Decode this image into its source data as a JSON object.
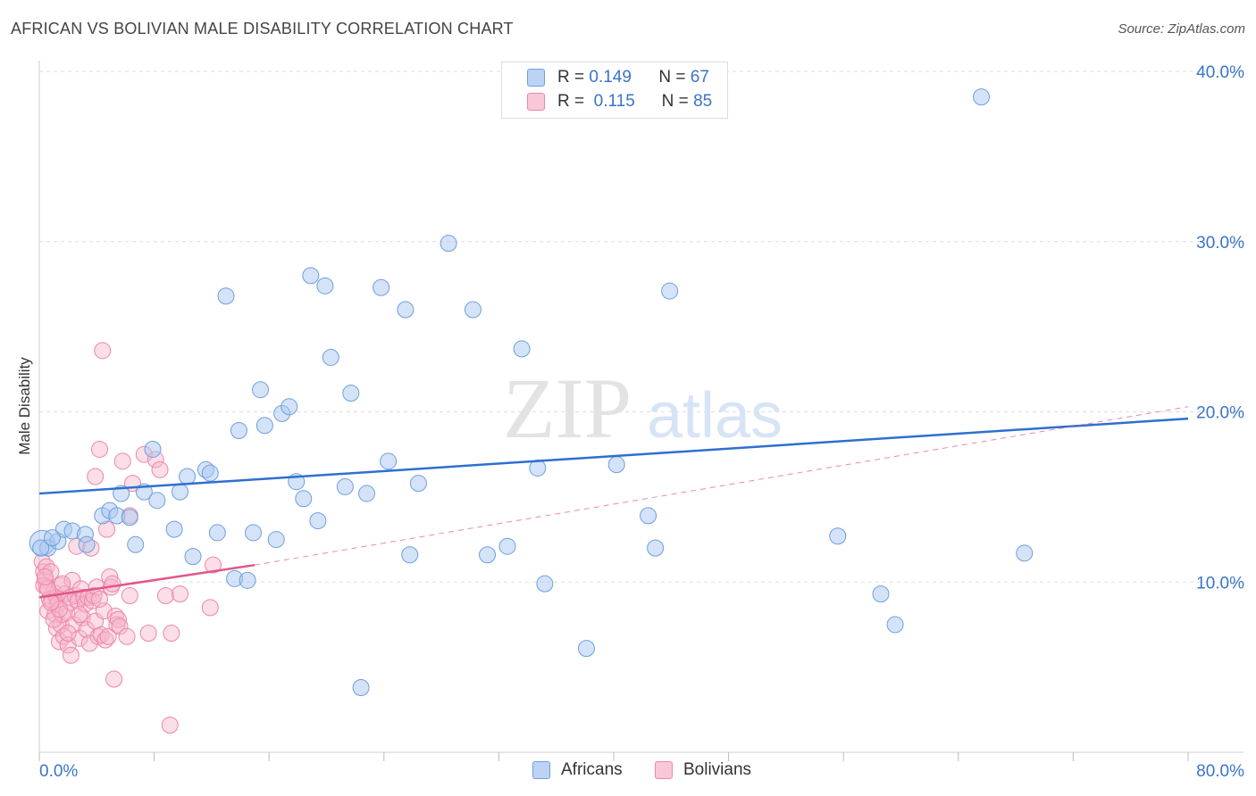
{
  "title": "AFRICAN VS BOLIVIAN MALE DISABILITY CORRELATION CHART",
  "source": "Source: ZipAtlas.com",
  "watermark": {
    "zip": "ZIP",
    "atlas": "atlas"
  },
  "legend": {
    "africans": {
      "r_label": "R =",
      "r_value": "0.149",
      "n_label": "N =",
      "n_value": "67"
    },
    "bolivians": {
      "r_label": "R =",
      "r_value": "0.115",
      "n_label": "N =",
      "n_value": "85"
    }
  },
  "bottom_legend": {
    "africans": "Africans",
    "bolivians": "Bolivians"
  },
  "colors": {
    "african_fill": "#a9c8f0",
    "african_stroke": "#6d9fe0",
    "african_line": "#2f6fcf",
    "bolivian_fill": "#f6b6cc",
    "bolivian_stroke": "#ec86a8",
    "bolivian_line": "#e0578a",
    "axis_text": "#3a74c9",
    "grid": "#dddddd"
  },
  "chart_data": {
    "type": "scatter",
    "title": "AFRICAN VS BOLIVIAN MALE DISABILITY CORRELATION CHART",
    "xlabel": "",
    "ylabel": "Male Disability",
    "xlim": [
      0,
      80
    ],
    "ylim": [
      0,
      40
    ],
    "x_tick_labels": [
      "0.0%",
      "80.0%"
    ],
    "y_ticks": [
      10,
      20,
      30,
      40
    ],
    "y_tick_labels": [
      "10.0%",
      "20.0%",
      "30.0%",
      "40.0%"
    ],
    "grid": true,
    "legend_position": "top-center",
    "series": [
      {
        "name": "Africans",
        "r": 0.149,
        "n": 67,
        "trend": {
          "x": [
            0,
            80
          ],
          "y": [
            15.2,
            19.6
          ],
          "style": "solid"
        },
        "points": [
          [
            0.2,
            12.3
          ],
          [
            0.6,
            12.0
          ],
          [
            1.3,
            12.4
          ],
          [
            1.7,
            13.1
          ],
          [
            2.3,
            13.0
          ],
          [
            3.2,
            12.8
          ],
          [
            3.3,
            12.2
          ],
          [
            4.4,
            13.9
          ],
          [
            4.9,
            14.2
          ],
          [
            5.4,
            13.9
          ],
          [
            5.7,
            15.2
          ],
          [
            6.3,
            13.8
          ],
          [
            6.7,
            12.2
          ],
          [
            7.3,
            15.3
          ],
          [
            7.9,
            17.8
          ],
          [
            8.2,
            14.8
          ],
          [
            9.4,
            13.1
          ],
          [
            9.8,
            15.3
          ],
          [
            10.3,
            16.2
          ],
          [
            10.7,
            11.5
          ],
          [
            11.6,
            16.6
          ],
          [
            11.9,
            16.4
          ],
          [
            12.4,
            12.9
          ],
          [
            13.0,
            26.8
          ],
          [
            13.6,
            10.2
          ],
          [
            13.9,
            18.9
          ],
          [
            14.5,
            10.1
          ],
          [
            14.9,
            12.9
          ],
          [
            15.4,
            21.3
          ],
          [
            15.7,
            19.2
          ],
          [
            16.5,
            12.5
          ],
          [
            16.9,
            19.9
          ],
          [
            17.4,
            20.3
          ],
          [
            17.9,
            15.9
          ],
          [
            18.4,
            14.9
          ],
          [
            18.9,
            28.0
          ],
          [
            19.4,
            13.6
          ],
          [
            19.9,
            27.4
          ],
          [
            20.3,
            23.2
          ],
          [
            21.3,
            15.6
          ],
          [
            21.7,
            21.1
          ],
          [
            22.4,
            3.8
          ],
          [
            22.8,
            15.2
          ],
          [
            23.8,
            27.3
          ],
          [
            24.3,
            17.1
          ],
          [
            25.5,
            26.0
          ],
          [
            25.8,
            11.6
          ],
          [
            26.4,
            15.8
          ],
          [
            28.5,
            29.9
          ],
          [
            30.2,
            26.0
          ],
          [
            31.2,
            11.6
          ],
          [
            32.6,
            12.1
          ],
          [
            33.6,
            23.7
          ],
          [
            34.7,
            16.7
          ],
          [
            35.2,
            9.9
          ],
          [
            38.1,
            6.1
          ],
          [
            40.2,
            16.9
          ],
          [
            42.4,
            13.9
          ],
          [
            42.9,
            12.0
          ],
          [
            43.9,
            27.1
          ],
          [
            55.6,
            12.7
          ],
          [
            58.6,
            9.3
          ],
          [
            59.6,
            7.5
          ],
          [
            65.6,
            38.5
          ],
          [
            68.6,
            11.7
          ],
          [
            0.1,
            12.0
          ],
          [
            0.9,
            12.6
          ]
        ]
      },
      {
        "name": "Bolivians",
        "r": 0.115,
        "n": 85,
        "trend": {
          "x": [
            0,
            15
          ],
          "y": [
            9.1,
            11.0
          ],
          "style": "solid"
        },
        "trend_extended": {
          "x": [
            15,
            80
          ],
          "y": [
            11.0,
            20.3
          ],
          "style": "dashed"
        },
        "points": [
          [
            0.2,
            11.2
          ],
          [
            0.3,
            10.6
          ],
          [
            0.4,
            10.1
          ],
          [
            0.5,
            9.7
          ],
          [
            0.5,
            10.9
          ],
          [
            0.6,
            8.3
          ],
          [
            0.7,
            9.0
          ],
          [
            0.8,
            10.6
          ],
          [
            0.9,
            8.9
          ],
          [
            1.0,
            9.4
          ],
          [
            1.1,
            8.1
          ],
          [
            1.2,
            9.1
          ],
          [
            1.2,
            7.3
          ],
          [
            1.3,
            8.7
          ],
          [
            1.4,
            6.5
          ],
          [
            1.5,
            9.8
          ],
          [
            1.5,
            7.5
          ],
          [
            1.6,
            8.1
          ],
          [
            1.7,
            6.8
          ],
          [
            1.8,
            9.3
          ],
          [
            1.9,
            8.2
          ],
          [
            2.0,
            6.3
          ],
          [
            2.1,
            9.1
          ],
          [
            2.2,
            5.7
          ],
          [
            2.2,
            8.8
          ],
          [
            2.3,
            10.1
          ],
          [
            2.4,
            7.5
          ],
          [
            2.5,
            9.2
          ],
          [
            2.6,
            12.1
          ],
          [
            2.7,
            8.9
          ],
          [
            2.8,
            6.7
          ],
          [
            2.9,
            9.6
          ],
          [
            3.0,
            7.9
          ],
          [
            3.1,
            9.1
          ],
          [
            3.2,
            8.7
          ],
          [
            3.3,
            7.2
          ],
          [
            3.4,
            9.1
          ],
          [
            3.5,
            6.4
          ],
          [
            3.6,
            12.0
          ],
          [
            3.7,
            8.9
          ],
          [
            3.8,
            9.2
          ],
          [
            3.9,
            7.7
          ],
          [
            4.0,
            9.7
          ],
          [
            4.1,
            6.8
          ],
          [
            4.2,
            17.8
          ],
          [
            4.3,
            6.9
          ],
          [
            4.4,
            23.6
          ],
          [
            4.5,
            8.3
          ],
          [
            4.6,
            6.6
          ],
          [
            4.7,
            13.1
          ],
          [
            4.8,
            6.8
          ],
          [
            4.9,
            10.3
          ],
          [
            5.0,
            9.7
          ],
          [
            5.1,
            9.9
          ],
          [
            5.2,
            4.3
          ],
          [
            5.3,
            8.0
          ],
          [
            5.4,
            7.5
          ],
          [
            5.5,
            7.8
          ],
          [
            5.6,
            7.4
          ],
          [
            5.8,
            17.1
          ],
          [
            6.1,
            6.8
          ],
          [
            6.3,
            13.9
          ],
          [
            6.5,
            15.8
          ],
          [
            7.3,
            17.5
          ],
          [
            7.6,
            7.0
          ],
          [
            8.1,
            17.2
          ],
          [
            8.4,
            16.6
          ],
          [
            8.8,
            9.2
          ],
          [
            9.1,
            1.6
          ],
          [
            9.2,
            7.0
          ],
          [
            9.8,
            9.3
          ],
          [
            11.9,
            8.5
          ],
          [
            12.1,
            11.0
          ],
          [
            0.3,
            9.8
          ],
          [
            0.6,
            9.6
          ],
          [
            1.0,
            7.8
          ],
          [
            1.4,
            8.4
          ],
          [
            2.0,
            7.0
          ],
          [
            3.9,
            16.2
          ],
          [
            4.2,
            9.0
          ],
          [
            6.3,
            9.2
          ],
          [
            0.4,
            10.3
          ],
          [
            0.8,
            8.8
          ],
          [
            1.6,
            9.9
          ],
          [
            2.8,
            8.1
          ]
        ]
      }
    ]
  }
}
